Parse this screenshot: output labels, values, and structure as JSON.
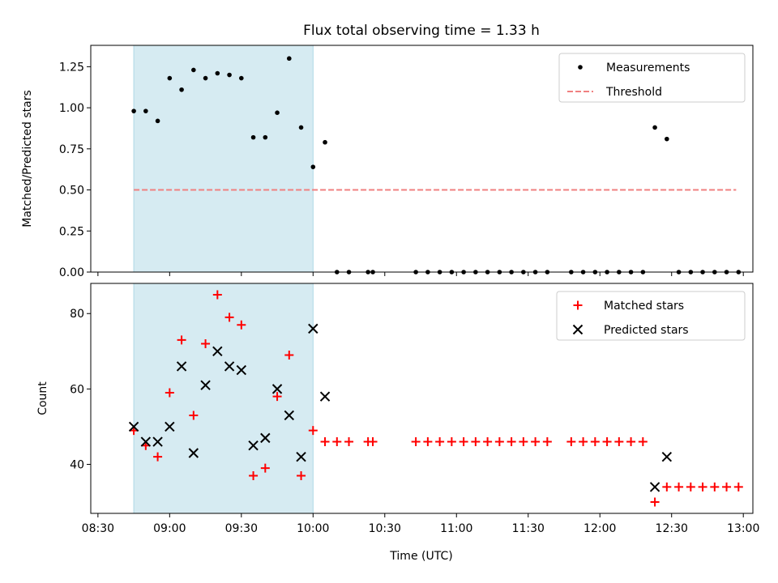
{
  "chart_data": {
    "type": "scatter",
    "title": "Flux total observing time = 1.33 h",
    "xlabel": "Time (UTC)",
    "x_ticks": [
      "08:30",
      "09:00",
      "09:30",
      "10:00",
      "10:30",
      "11:00",
      "11:30",
      "12:00",
      "12:30",
      "13:00"
    ],
    "x_range": [
      "08:27",
      "13:04"
    ],
    "shaded_interval": [
      "08:45",
      "10:00"
    ],
    "shade_color": "#add8e6",
    "panels": [
      {
        "ylabel": "Matched/Predicted stars",
        "ylim": [
          0,
          1.38
        ],
        "y_ticks": [
          "0.00",
          "0.25",
          "0.50",
          "0.75",
          "1.00",
          "1.25"
        ],
        "legend_position": "upper-right",
        "series": [
          {
            "name": "Measurements",
            "marker": "dot",
            "color": "#000000",
            "points": [
              [
                "08:45",
                0.98
              ],
              [
                "08:50",
                0.98
              ],
              [
                "08:55",
                0.92
              ],
              [
                "09:00",
                1.18
              ],
              [
                "09:05",
                1.11
              ],
              [
                "09:10",
                1.23
              ],
              [
                "09:15",
                1.18
              ],
              [
                "09:20",
                1.21
              ],
              [
                "09:25",
                1.2
              ],
              [
                "09:30",
                1.18
              ],
              [
                "09:35",
                0.82
              ],
              [
                "09:40",
                0.82
              ],
              [
                "09:45",
                0.97
              ],
              [
                "09:50",
                1.3
              ],
              [
                "09:55",
                0.88
              ],
              [
                "10:00",
                0.64
              ],
              [
                "10:05",
                0.79
              ],
              [
                "10:10",
                0.0
              ],
              [
                "10:15",
                0.0
              ],
              [
                "10:23",
                0.0
              ],
              [
                "10:25",
                0.0
              ],
              [
                "10:43",
                0.0
              ],
              [
                "10:48",
                0.0
              ],
              [
                "10:53",
                0.0
              ],
              [
                "10:58",
                0.0
              ],
              [
                "11:03",
                0.0
              ],
              [
                "11:08",
                0.0
              ],
              [
                "11:13",
                0.0
              ],
              [
                "11:18",
                0.0
              ],
              [
                "11:23",
                0.0
              ],
              [
                "11:28",
                0.0
              ],
              [
                "11:33",
                0.0
              ],
              [
                "11:38",
                0.0
              ],
              [
                "11:48",
                0.0
              ],
              [
                "11:53",
                0.0
              ],
              [
                "11:58",
                0.0
              ],
              [
                "12:03",
                0.0
              ],
              [
                "12:08",
                0.0
              ],
              [
                "12:13",
                0.0
              ],
              [
                "12:18",
                0.0
              ],
              [
                "12:23",
                0.88
              ],
              [
                "12:28",
                0.81
              ],
              [
                "12:33",
                0.0
              ],
              [
                "12:38",
                0.0
              ],
              [
                "12:43",
                0.0
              ],
              [
                "12:48",
                0.0
              ],
              [
                "12:53",
                0.0
              ],
              [
                "12:58",
                0.0
              ]
            ]
          },
          {
            "name": "Threshold",
            "marker": "dashed-line",
            "color": "#f08080",
            "points": [
              [
                "08:45",
                0.5
              ],
              [
                "12:57",
                0.5
              ]
            ]
          }
        ]
      },
      {
        "ylabel": "Count",
        "ylim": [
          27,
          88
        ],
        "y_ticks": [
          "40",
          "60",
          "80"
        ],
        "legend_position": "upper-right",
        "series": [
          {
            "name": "Matched stars",
            "marker": "plus",
            "color": "#ff0000",
            "points": [
              [
                "08:45",
                49
              ],
              [
                "08:50",
                45
              ],
              [
                "08:55",
                42
              ],
              [
                "09:00",
                59
              ],
              [
                "09:05",
                73
              ],
              [
                "09:10",
                53
              ],
              [
                "09:15",
                72
              ],
              [
                "09:20",
                85
              ],
              [
                "09:25",
                79
              ],
              [
                "09:30",
                77
              ],
              [
                "09:35",
                37
              ],
              [
                "09:40",
                39
              ],
              [
                "09:45",
                58
              ],
              [
                "09:50",
                69
              ],
              [
                "09:55",
                37
              ],
              [
                "10:00",
                49
              ],
              [
                "10:05",
                46
              ],
              [
                "10:10",
                46
              ],
              [
                "10:15",
                46
              ],
              [
                "10:23",
                46
              ],
              [
                "10:25",
                46
              ],
              [
                "10:43",
                46
              ],
              [
                "10:48",
                46
              ],
              [
                "10:53",
                46
              ],
              [
                "10:58",
                46
              ],
              [
                "11:03",
                46
              ],
              [
                "11:08",
                46
              ],
              [
                "11:13",
                46
              ],
              [
                "11:18",
                46
              ],
              [
                "11:23",
                46
              ],
              [
                "11:28",
                46
              ],
              [
                "11:33",
                46
              ],
              [
                "11:38",
                46
              ],
              [
                "11:48",
                46
              ],
              [
                "11:53",
                46
              ],
              [
                "11:58",
                46
              ],
              [
                "12:03",
                46
              ],
              [
                "12:08",
                46
              ],
              [
                "12:13",
                46
              ],
              [
                "12:18",
                46
              ],
              [
                "12:23",
                30
              ],
              [
                "12:28",
                34
              ],
              [
                "12:33",
                34
              ],
              [
                "12:38",
                34
              ],
              [
                "12:43",
                34
              ],
              [
                "12:48",
                34
              ],
              [
                "12:53",
                34
              ],
              [
                "12:58",
                34
              ]
            ]
          },
          {
            "name": "Predicted stars",
            "marker": "x",
            "color": "#000000",
            "points": [
              [
                "08:45",
                50
              ],
              [
                "08:50",
                46
              ],
              [
                "08:55",
                46
              ],
              [
                "09:00",
                50
              ],
              [
                "09:05",
                66
              ],
              [
                "09:10",
                43
              ],
              [
                "09:15",
                61
              ],
              [
                "09:20",
                70
              ],
              [
                "09:25",
                66
              ],
              [
                "09:30",
                65
              ],
              [
                "09:35",
                45
              ],
              [
                "09:40",
                47
              ],
              [
                "09:45",
                60
              ],
              [
                "09:50",
                53
              ],
              [
                "09:55",
                42
              ],
              [
                "10:00",
                76
              ],
              [
                "10:05",
                58
              ],
              [
                "12:23",
                34
              ],
              [
                "12:28",
                42
              ]
            ]
          }
        ]
      }
    ]
  }
}
